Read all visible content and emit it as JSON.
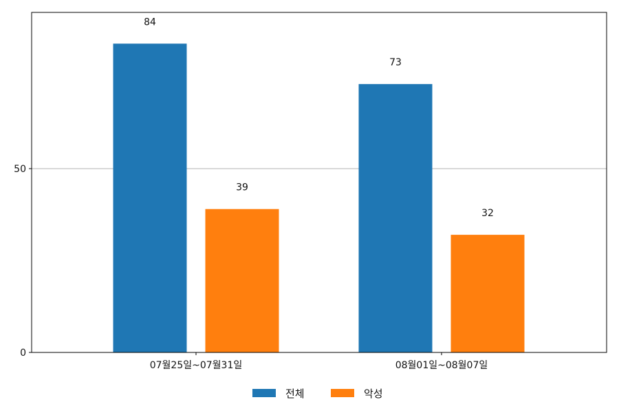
{
  "chart_data": {
    "type": "bar",
    "categories": [
      "07월25일~07월31일",
      "08월01일~08월07일"
    ],
    "series": [
      {
        "name": "전체",
        "values": [
          84,
          73
        ],
        "color": "#1f77b4"
      },
      {
        "name": "악성",
        "values": [
          39,
          32
        ],
        "color": "#ff7f0e"
      }
    ],
    "ylim": [
      0,
      92.5
    ],
    "yticks": [
      0,
      50
    ],
    "grid": "y-major",
    "legend_position": "bottom-center"
  }
}
